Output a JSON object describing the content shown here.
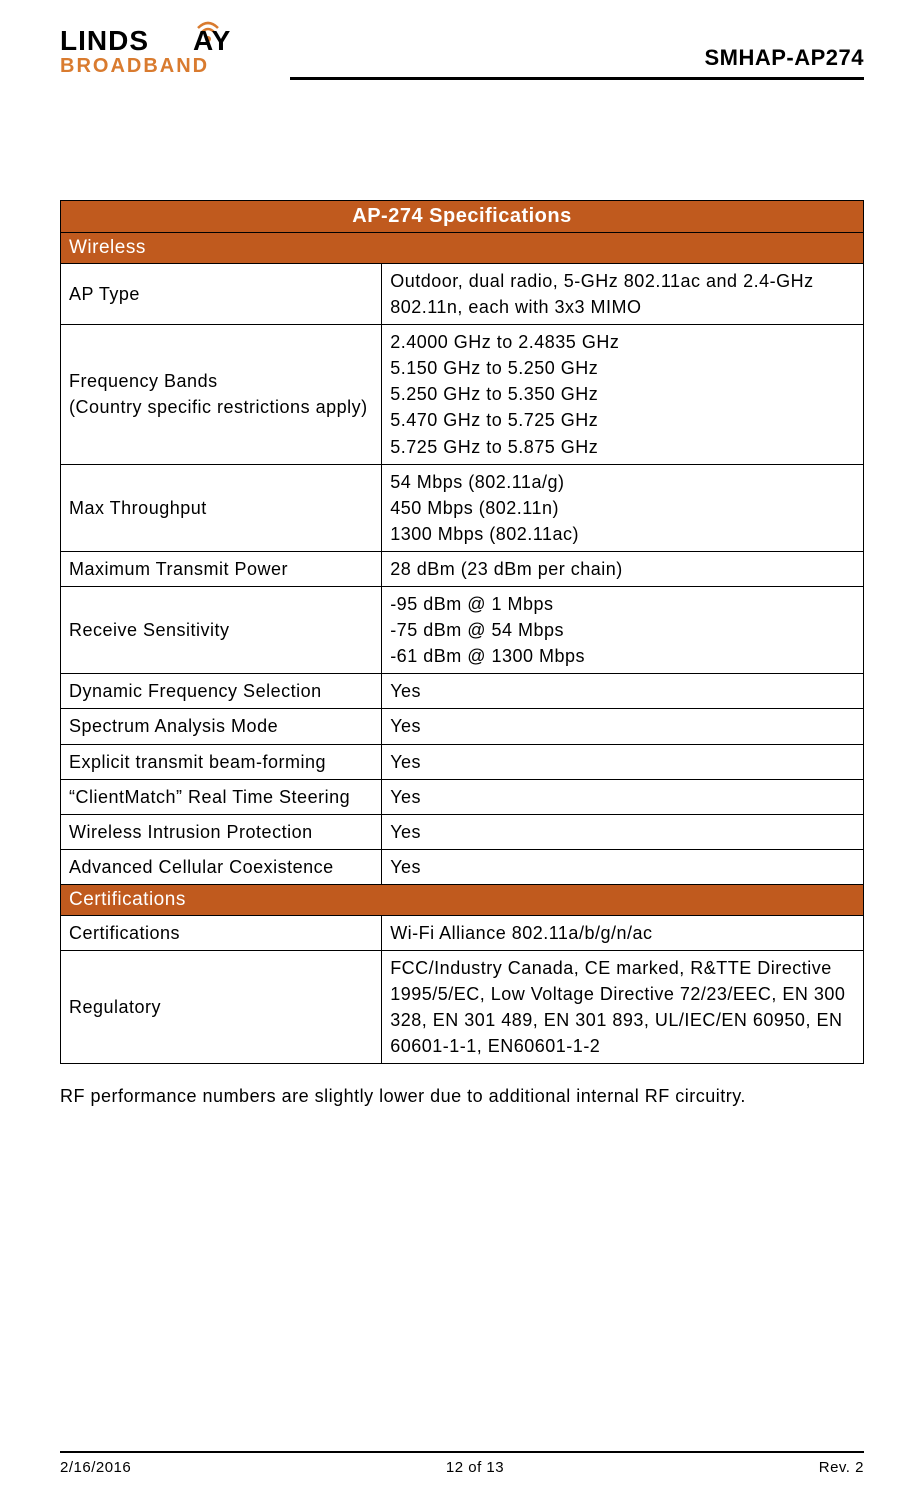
{
  "header": {
    "logo_top": "LINDSAY",
    "logo_bottom": "BROADBAND",
    "doc_id": "SMHAP-AP274",
    "logo_color_orange": "#d97b2f",
    "logo_color_black": "#000000"
  },
  "table": {
    "title": "AP-274 Specifications",
    "title_bg": "#c05a1e",
    "sections": [
      {
        "heading": "Wireless",
        "rows": [
          {
            "label": "AP Type",
            "value": "Outdoor, dual radio, 5-GHz 802.11ac and 2.4-GHz 802.11n, each with 3x3 MIMO"
          },
          {
            "label": "Frequency Bands\n(Country specific restrictions apply)",
            "value": "2.4000 GHz to 2.4835 GHz\n5.150 GHz to 5.250 GHz\n5.250 GHz to 5.350 GHz\n5.470 GHz to 5.725 GHz\n5.725 GHz to 5.875 GHz"
          },
          {
            "label": "Max Throughput",
            "value": "54 Mbps (802.11a/g)\n450 Mbps (802.11n)\n1300 Mbps (802.11ac)"
          },
          {
            "label": "Maximum Transmit Power",
            "value": "28 dBm (23 dBm per chain)"
          },
          {
            "label": "Receive Sensitivity",
            "value": "-95 dBm @ 1 Mbps\n-75 dBm @ 54 Mbps\n-61 dBm @ 1300 Mbps"
          },
          {
            "label": "Dynamic Frequency Selection",
            "value": "Yes"
          },
          {
            "label": "Spectrum Analysis Mode",
            "value": "Yes"
          },
          {
            "label": "Explicit transmit beam-forming",
            "value": "Yes"
          },
          {
            "label": "“ClientMatch” Real Time Steering",
            "value": "Yes"
          },
          {
            "label": "Wireless Intrusion Protection",
            "value": "Yes"
          },
          {
            "label": "Advanced Cellular Coexistence",
            "value": "Yes"
          }
        ]
      },
      {
        "heading": "Certifications",
        "rows": [
          {
            "label": "Certifications",
            "value": "Wi-Fi Alliance 802.11a/b/g/n/ac"
          },
          {
            "label": "Regulatory",
            "value": "FCC/Industry Canada, CE marked,  R&TTE Directive 1995/5/EC,  Low Voltage Directive 72/23/EEC,  EN 300 328,  EN 301 489,  EN 301 893,  UL/IEC/EN 60950,  EN 60601-1-1, EN60601-1-2"
          }
        ]
      }
    ]
  },
  "note": "RF performance numbers are slightly lower due to additional internal RF circuitry.",
  "footer": {
    "date": "2/16/2016",
    "page": "12 of 13",
    "rev": "Rev. 2"
  }
}
